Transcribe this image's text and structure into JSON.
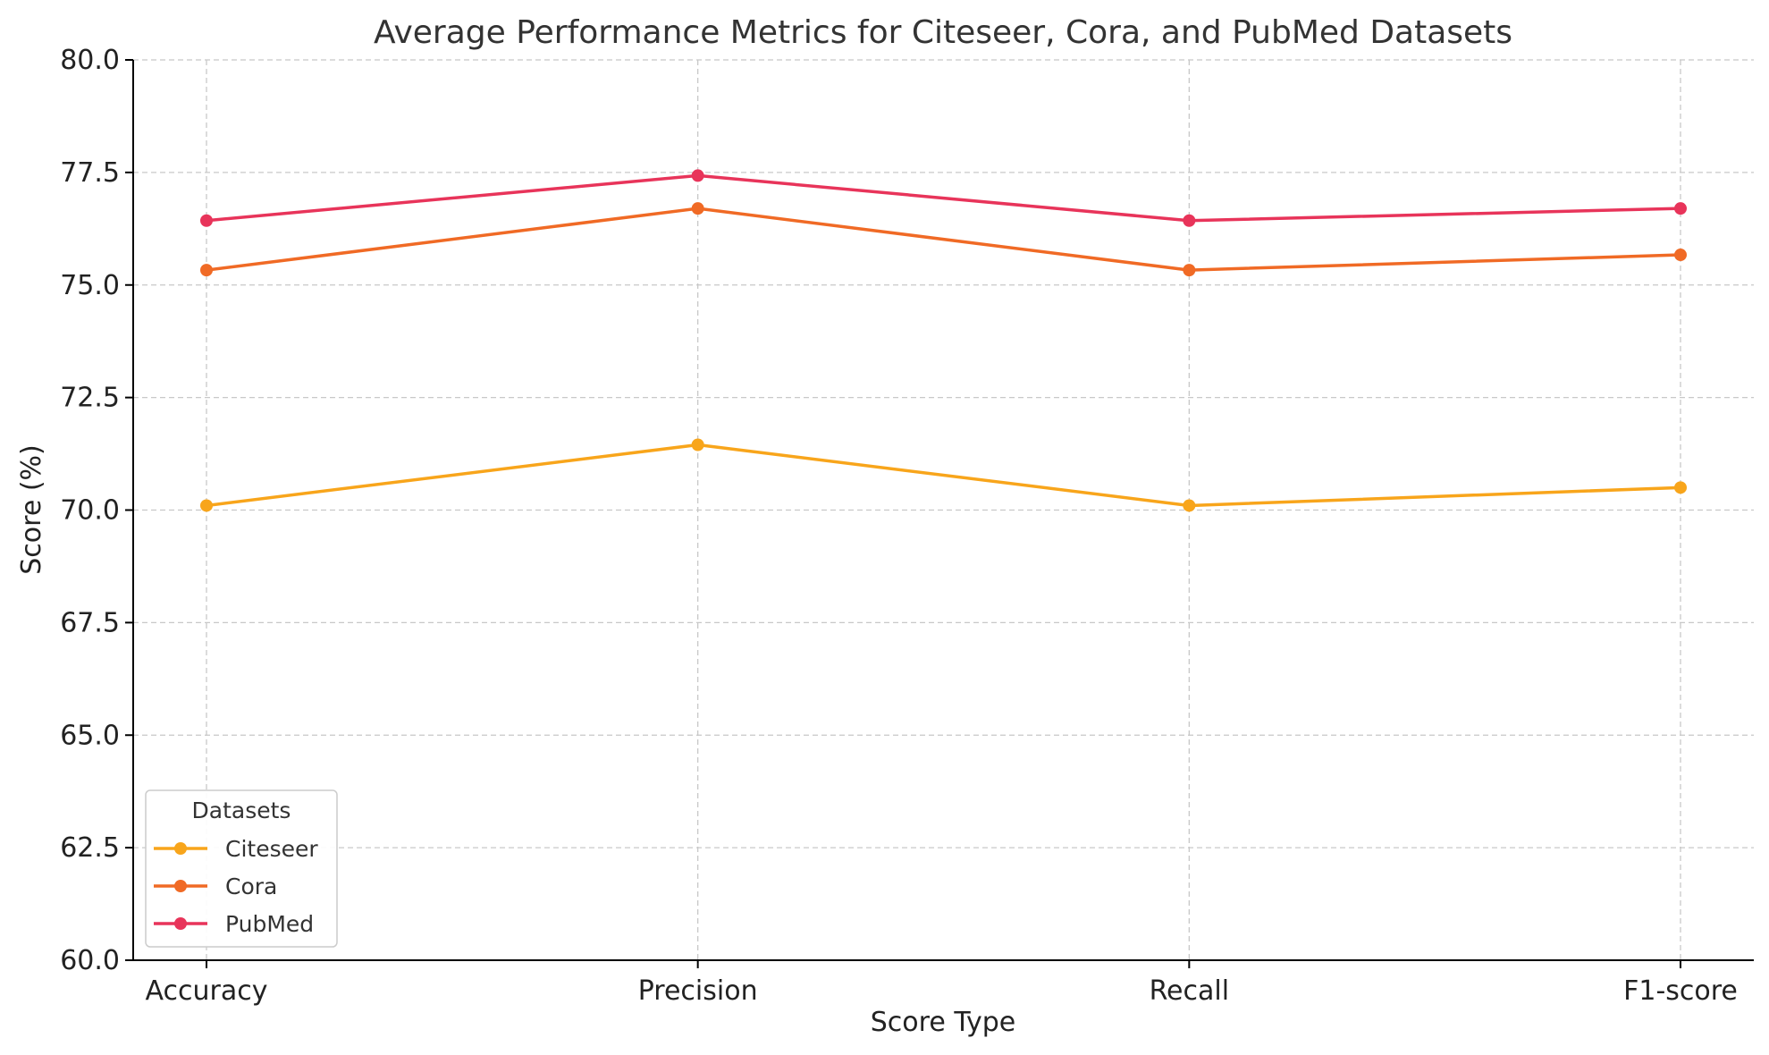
{
  "chart_data": {
    "type": "line",
    "title": "Average Performance Metrics for Citeseer, Cora, and PubMed Datasets",
    "xlabel": "Score Type",
    "ylabel": "Score (%)",
    "categories": [
      "Accuracy",
      "Precision",
      "Recall",
      "F1-score"
    ],
    "ylim": [
      60,
      80
    ],
    "yticks": [
      "60.0",
      "62.5",
      "65.0",
      "67.5",
      "70.0",
      "72.5",
      "75.0",
      "77.5",
      "80.0"
    ],
    "grid": true,
    "legend": {
      "title": "Datasets",
      "placement": "bottom-left"
    },
    "series": [
      {
        "name": "Citeseer",
        "color": "#F8A51B",
        "values": [
          70.1,
          71.45,
          70.1,
          70.5
        ]
      },
      {
        "name": "Cora",
        "color": "#F06A25",
        "values": [
          75.33,
          76.7,
          75.33,
          75.67
        ]
      },
      {
        "name": "PubMed",
        "color": "#E8345A",
        "values": [
          76.43,
          77.43,
          76.43,
          76.7
        ]
      }
    ]
  }
}
